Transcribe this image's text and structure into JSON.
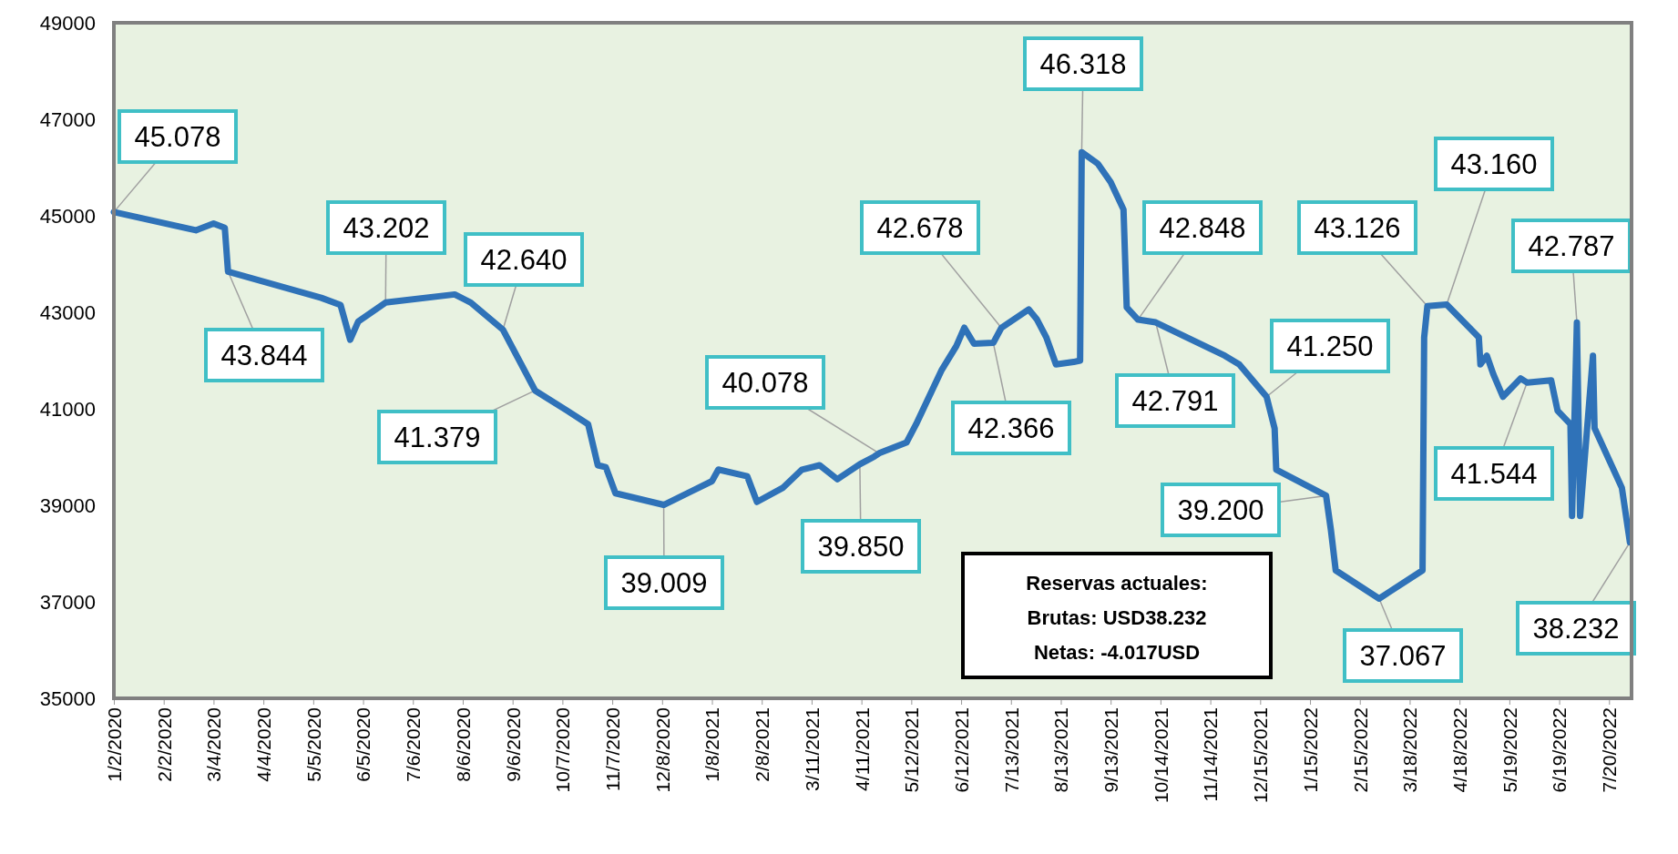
{
  "chart_data": {
    "type": "line",
    "x": [
      "2020-01-02",
      "2020-02-22",
      "2020-03-04",
      "2020-03-11",
      "2020-03-13",
      "2020-05-10",
      "2020-05-22",
      "2020-05-28",
      "2020-06-02",
      "2020-06-19",
      "2020-08-01",
      "2020-08-11",
      "2020-08-31",
      "2020-09-20",
      "2020-10-10",
      "2020-10-23",
      "2020-10-29",
      "2020-11-03",
      "2020-11-09",
      "2020-12-09",
      "2021-01-08",
      "2021-01-12",
      "2021-01-30",
      "2021-02-05",
      "2021-02-21",
      "2021-03-05",
      "2021-03-16",
      "2021-03-27",
      "2021-04-10",
      "2021-04-19",
      "2021-04-22",
      "2021-05-09",
      "2021-05-15",
      "2021-05-31",
      "2021-06-09",
      "2021-06-14",
      "2021-06-20",
      "2021-07-02",
      "2021-07-07",
      "2021-07-24",
      "2021-07-29",
      "2021-08-04",
      "2021-08-10",
      "2021-08-21",
      "2021-08-25",
      "2021-08-26",
      "2021-09-05",
      "2021-09-13",
      "2021-09-21",
      "2021-09-23",
      "2021-09-30",
      "2021-10-11",
      "2021-11-23",
      "2021-12-02",
      "2021-12-19",
      "2021-12-24",
      "2021-12-25",
      "2022-01-25",
      "2022-01-28",
      "2022-01-31",
      "2022-02-27",
      "2022-03-26",
      "2022-03-27",
      "2022-03-29",
      "2022-04-10",
      "2022-04-30",
      "2022-05-01",
      "2022-05-05",
      "2022-05-09",
      "2022-05-15",
      "2022-05-26",
      "2022-05-30",
      "2022-06-14",
      "2022-06-18",
      "2022-06-26",
      "2022-06-27",
      "2022-06-30",
      "2022-07-02",
      "2022-07-10",
      "2022-07-11",
      "2022-07-28",
      "2022-08-02"
    ],
    "series": [
      {
        "color": "#2f72b8",
        "value_labels": [
          "45.078",
          null,
          null,
          null,
          "43.844",
          null,
          null,
          null,
          null,
          "43.202",
          null,
          null,
          "42.640",
          "41.379",
          null,
          null,
          null,
          null,
          null,
          "39.009",
          null,
          null,
          null,
          null,
          null,
          null,
          null,
          null,
          "39.850",
          null,
          "40.078",
          null,
          null,
          null,
          null,
          null,
          null,
          "42.366",
          "42.678",
          null,
          null,
          null,
          null,
          null,
          null,
          "46.318",
          null,
          null,
          null,
          null,
          "42.848",
          "42.791",
          null,
          null,
          "41.250",
          null,
          null,
          "39.200",
          null,
          null,
          "37.067",
          null,
          null,
          "43.126",
          "43.160",
          null,
          null,
          null,
          null,
          null,
          null,
          "41.544",
          null,
          null,
          null,
          null,
          "42.787",
          null,
          null,
          null,
          null,
          "38.232"
        ],
        "values": [
          45078,
          44700,
          44840,
          44750,
          43844,
          43300,
          43150,
          42430,
          42810,
          43202,
          43370,
          43200,
          42640,
          41379,
          40960,
          40680,
          39830,
          39790,
          39250,
          39009,
          39500,
          39740,
          39600,
          39070,
          39360,
          39740,
          39830,
          39540,
          39850,
          40010,
          40078,
          40300,
          40680,
          41810,
          42300,
          42680,
          42350,
          42366,
          42678,
          43060,
          42860,
          42480,
          41920,
          41970,
          42000,
          46318,
          46080,
          45700,
          45130,
          43100,
          42848,
          42791,
          42100,
          41920,
          41250,
          40590,
          39740,
          39200,
          38490,
          37650,
          37067,
          37650,
          42480,
          43126,
          43160,
          42480,
          41920,
          42100,
          41720,
          41250,
          41630,
          41544,
          41590,
          40960,
          40680,
          38780,
          42787,
          38780,
          42100,
          40600,
          39360,
          38232
        ]
      }
    ],
    "xlim": [
      "2020-01-02",
      "2022-08-03"
    ],
    "ylim": [
      35000,
      49000
    ],
    "yticks": [
      35000,
      37000,
      39000,
      41000,
      43000,
      45000,
      47000,
      49000
    ],
    "xticks": [
      {
        "value": "2020-01-02",
        "label": "1/2/2020"
      },
      {
        "value": "2020-02-02",
        "label": "2/2/2020"
      },
      {
        "value": "2020-03-04",
        "label": "3/4/2020"
      },
      {
        "value": "2020-04-04",
        "label": "4/4/2020"
      },
      {
        "value": "2020-05-05",
        "label": "5/5/2020"
      },
      {
        "value": "2020-06-05",
        "label": "6/5/2020"
      },
      {
        "value": "2020-07-06",
        "label": "7/6/2020"
      },
      {
        "value": "2020-08-06",
        "label": "8/6/2020"
      },
      {
        "value": "2020-09-06",
        "label": "9/6/2020"
      },
      {
        "value": "2020-10-07",
        "label": "10/7/2020"
      },
      {
        "value": "2020-11-07",
        "label": "11/7/2020"
      },
      {
        "value": "2020-12-08",
        "label": "12/8/2020"
      },
      {
        "value": "2021-01-08",
        "label": "1/8/2021"
      },
      {
        "value": "2021-02-08",
        "label": "2/8/2021"
      },
      {
        "value": "2021-03-11",
        "label": "3/11/2021"
      },
      {
        "value": "2021-04-11",
        "label": "4/11/2021"
      },
      {
        "value": "2021-05-12",
        "label": "5/12/2021"
      },
      {
        "value": "2021-06-12",
        "label": "6/12/2021"
      },
      {
        "value": "2021-07-13",
        "label": "7/13/2021"
      },
      {
        "value": "2021-08-13",
        "label": "8/13/2021"
      },
      {
        "value": "2021-09-13",
        "label": "9/13/2021"
      },
      {
        "value": "2021-10-14",
        "label": "10/14/2021"
      },
      {
        "value": "2021-11-14",
        "label": "11/14/2021"
      },
      {
        "value": "2021-12-15",
        "label": "12/15/2021"
      },
      {
        "value": "2022-01-15",
        "label": "1/15/2022"
      },
      {
        "value": "2022-02-15",
        "label": "2/15/2022"
      },
      {
        "value": "2022-03-18",
        "label": "3/18/2022"
      },
      {
        "value": "2022-04-18",
        "label": "4/18/2022"
      },
      {
        "value": "2022-05-19",
        "label": "5/19/2022"
      },
      {
        "value": "2022-06-19",
        "label": "6/19/2022"
      },
      {
        "value": "2022-07-20",
        "label": "7/20/2022"
      }
    ],
    "annotations": [
      "Reservas actuales:",
      "Brutas: USD38.232",
      "Netas: -4.017USD"
    ]
  }
}
